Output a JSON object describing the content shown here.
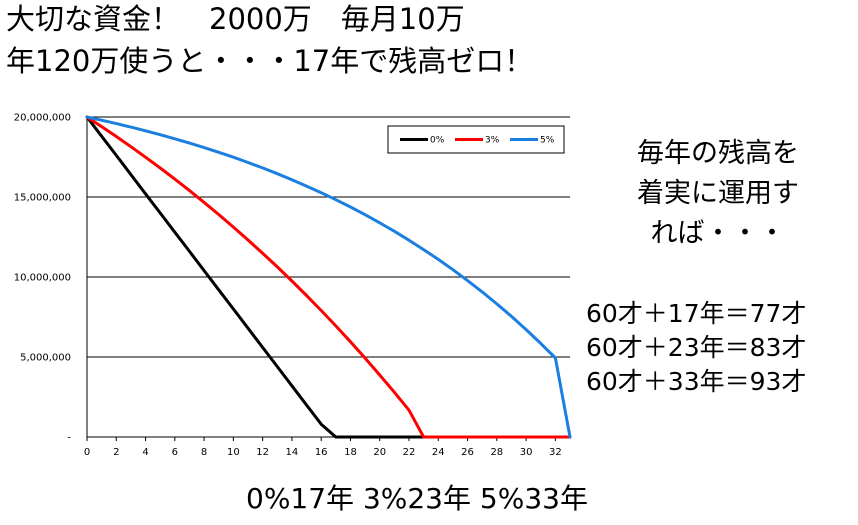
{
  "headline": {
    "line1": "大切な資金！　2000万　毎月10万",
    "line2": "年120万使うと・・・17年で残高ゼロ！"
  },
  "side_note": {
    "lines": [
      "毎年の残高を",
      "着実に運用す",
      "れば・・・"
    ]
  },
  "ages": {
    "lines": [
      "60才＋17年＝77才",
      "60才＋23年＝83才",
      "60才＋33年＝93才"
    ]
  },
  "summary": "0%17年 3%23年 5%33年",
  "chart_data": {
    "type": "line",
    "xlim": [
      0,
      33
    ],
    "ylim": [
      0,
      20000000
    ],
    "x_ticks": [
      0,
      2,
      4,
      6,
      8,
      10,
      12,
      14,
      16,
      18,
      20,
      22,
      24,
      26,
      28,
      30,
      32
    ],
    "y_tick_labels": [
      {
        "value": 0,
        "label": "-"
      },
      {
        "value": 5000000,
        "label": "5,000,000"
      },
      {
        "value": 10000000,
        "label": "10,000,000"
      },
      {
        "value": 15000000,
        "label": "15,000,000"
      },
      {
        "value": 20000000,
        "label": "20,000,000"
      }
    ],
    "grid": "horizontal",
    "legend_position": "top-right",
    "series": [
      {
        "name": "0%",
        "color": "#000000",
        "x": [
          0,
          1,
          2,
          3,
          4,
          5,
          6,
          7,
          8,
          9,
          10,
          11,
          12,
          13,
          14,
          15,
          16,
          17
        ],
        "values": [
          20000000,
          18800000,
          17600000,
          16400000,
          15200000,
          14000000,
          12800000,
          11600000,
          10400000,
          9200000,
          8000000,
          6800000,
          5600000,
          4400000,
          3200000,
          2000000,
          800000,
          0
        ]
      },
      {
        "name": "3%",
        "color": "#ff0000",
        "x": [
          0,
          1,
          2,
          3,
          4,
          5,
          6,
          7,
          8,
          9,
          10,
          11,
          12,
          13,
          14,
          15,
          16,
          17,
          18,
          19,
          20,
          21,
          22,
          23
        ],
        "values": [
          20000000,
          19400000,
          18782000,
          18145460,
          17489824,
          16814519,
          16118954,
          15402523,
          14664599,
          13904537,
          13121673,
          12315323,
          11484783,
          10629326,
          9748206,
          8840652,
          7905872,
          6943048,
          5951339,
          4929879,
          3877775,
          2794108,
          1677931,
          0
        ]
      },
      {
        "name": "5%",
        "color": "#1a7fe0",
        "x": [
          0,
          1,
          2,
          3,
          4,
          5,
          6,
          7,
          8,
          9,
          10,
          11,
          12,
          13,
          14,
          15,
          16,
          17,
          18,
          19,
          20,
          21,
          22,
          23,
          24,
          25,
          26,
          27,
          28,
          29,
          30,
          31,
          32,
          33
        ],
        "values": [
          20000000,
          19800000,
          19590000,
          19369500,
          19137975,
          18894874,
          18639617,
          18371598,
          18090178,
          17794687,
          17484421,
          17158642,
          16816574,
          16457403,
          16080273,
          15684287,
          15268501,
          14831926,
          14373522,
          13892198,
          13386808,
          12856148,
          12298956,
          11713904,
          11099599,
          10454579,
          9777308,
          9066173,
          8319482,
          7535456,
          6712229,
          5847840,
          4940232,
          0
        ]
      }
    ]
  }
}
